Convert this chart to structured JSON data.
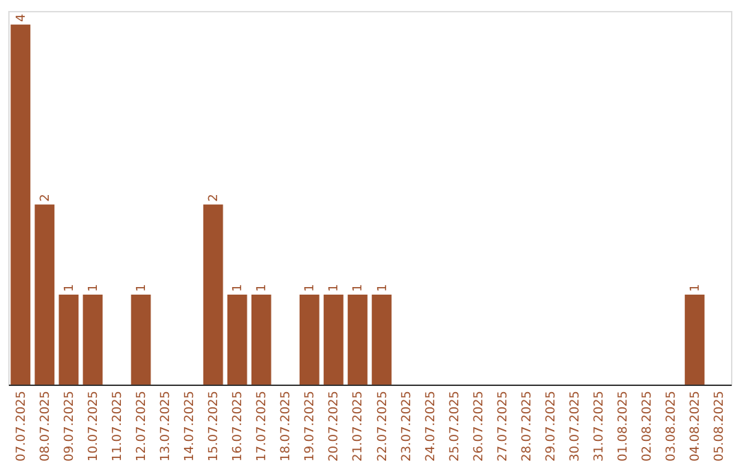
{
  "chart_data": {
    "type": "bar",
    "categories": [
      "07.07.2025",
      "08.07.2025",
      "09.07.2025",
      "10.07.2025",
      "11.07.2025",
      "12.07.2025",
      "13.07.2025",
      "14.07.2025",
      "15.07.2025",
      "16.07.2025",
      "17.07.2025",
      "18.07.2025",
      "19.07.2025",
      "20.07.2025",
      "21.07.2025",
      "22.07.2025",
      "23.07.2025",
      "24.07.2025",
      "25.07.2025",
      "26.07.2025",
      "27.07.2025",
      "28.07.2025",
      "29.07.2025",
      "30.07.2025",
      "31.07.2025",
      "01.08.2025",
      "02.08.2025",
      "03.08.2025",
      "04.08.2025",
      "05.08.2025"
    ],
    "values": [
      4,
      2,
      1,
      1,
      0,
      1,
      0,
      0,
      2,
      1,
      1,
      0,
      1,
      1,
      1,
      1,
      0,
      0,
      0,
      0,
      0,
      0,
      0,
      0,
      0,
      0,
      0,
      0,
      1,
      0
    ],
    "value_labels": [
      "4",
      "2",
      "1",
      "1",
      null,
      "1",
      null,
      null,
      "2",
      "1",
      "1",
      null,
      "1",
      "1",
      "1",
      "1",
      null,
      null,
      null,
      null,
      null,
      null,
      null,
      null,
      null,
      null,
      null,
      null,
      "1",
      null
    ],
    "color": "#a0522d",
    "ylim": [
      0,
      4.15
    ],
    "tick_labels": "x"
  }
}
